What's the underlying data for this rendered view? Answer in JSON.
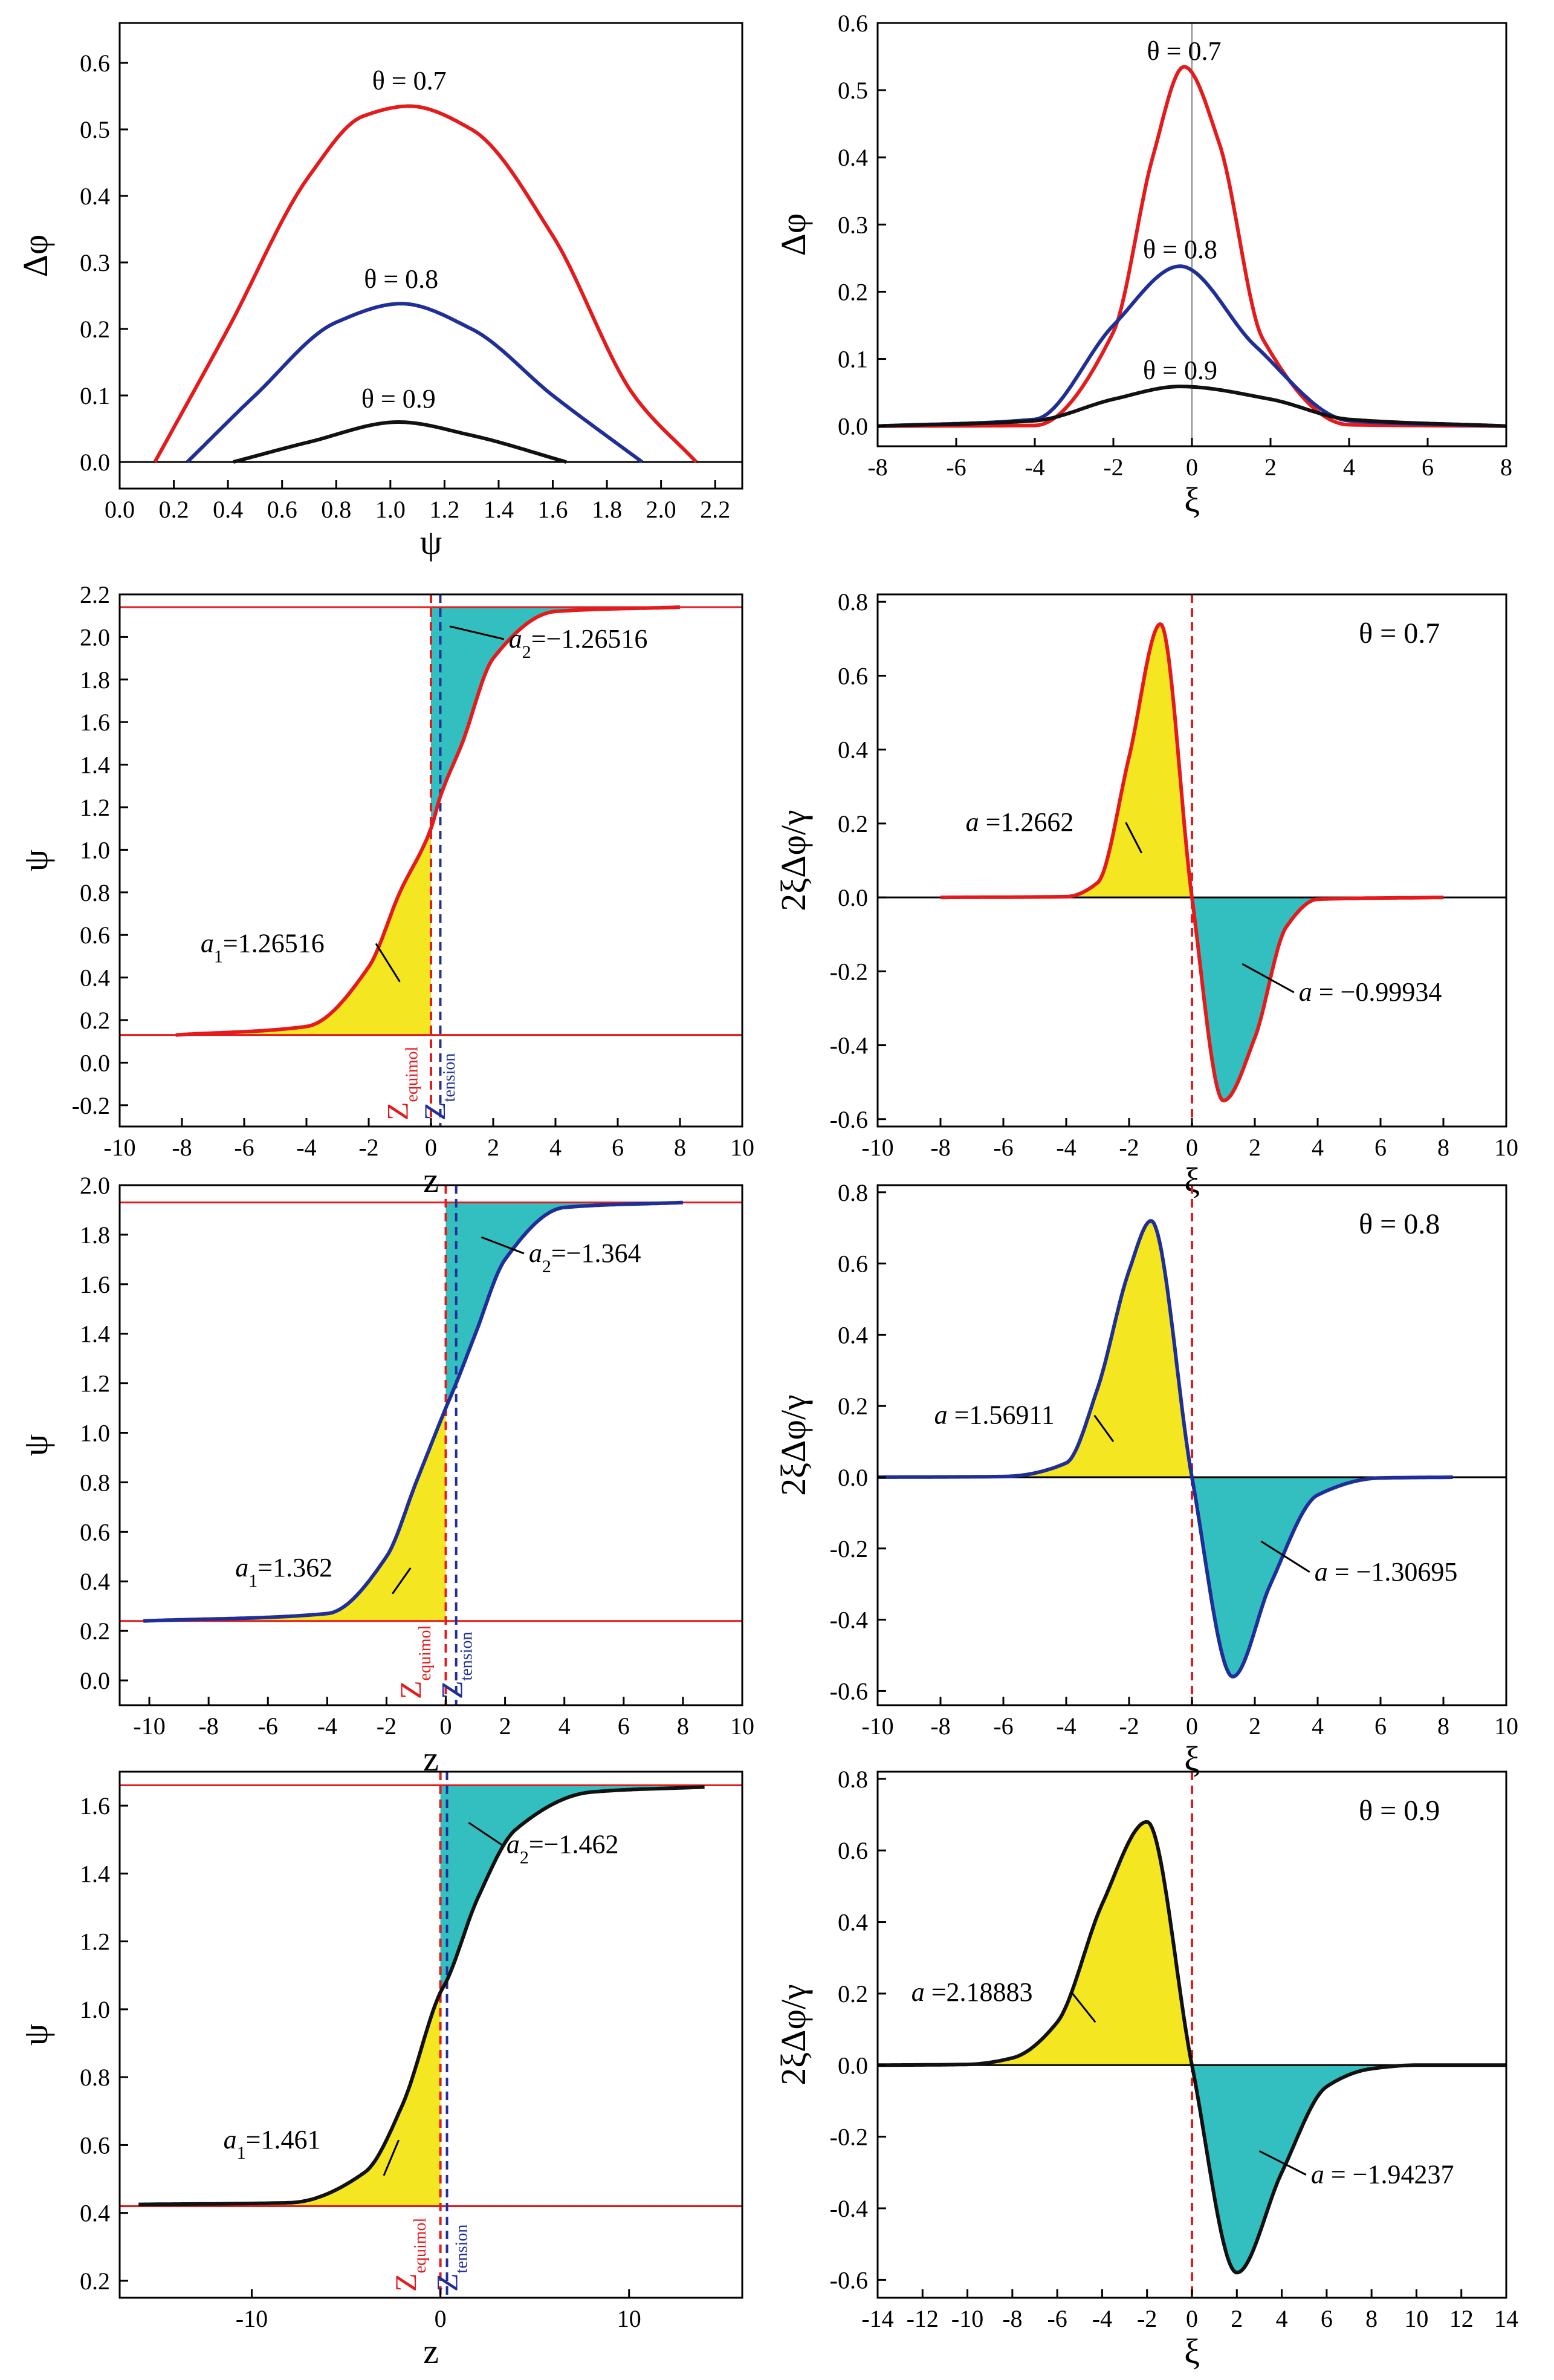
{
  "chart_data": [
    {
      "id": "p1",
      "type": "line",
      "xlabel": "ψ",
      "ylabel": "Δφ",
      "xlim": [
        0.0,
        2.3
      ],
      "ylim": [
        -0.04,
        0.66
      ],
      "xticks": [
        0.0,
        0.2,
        0.4,
        0.6,
        0.8,
        1.0,
        1.2,
        1.4,
        1.6,
        1.8,
        2.0,
        2.2
      ],
      "xtick_labels": [
        "0.0",
        "0.2",
        "0.4",
        "0.6",
        "0.8",
        "1.0",
        "1.2",
        "1.4",
        "1.6",
        "1.8",
        "2.0",
        "2.2"
      ],
      "yticks": [
        0.0,
        0.1,
        0.2,
        0.3,
        0.4,
        0.5,
        0.6
      ],
      "ytick_labels": [
        "0.0",
        "0.1",
        "0.2",
        "0.3",
        "0.4",
        "0.5",
        "0.6"
      ],
      "hlines": [
        {
          "y": 0,
          "color": "#000000"
        }
      ],
      "series": [
        {
          "name": "θ = 0.7",
          "color": "#e41a1c",
          "x": [
            0.13,
            0.4,
            0.7,
            0.9,
            1.07,
            1.3,
            1.6,
            1.9,
            2.13
          ],
          "y": [
            0.0,
            0.2,
            0.43,
            0.52,
            0.535,
            0.5,
            0.34,
            0.1,
            0.0
          ],
          "label_at": [
            1.07,
            0.56
          ]
        },
        {
          "name": "θ = 0.8",
          "color": "#1f2f97",
          "x": [
            0.25,
            0.5,
            0.8,
            1.04,
            1.3,
            1.6,
            1.93
          ],
          "y": [
            0.0,
            0.1,
            0.21,
            0.238,
            0.2,
            0.1,
            0.0
          ],
          "label_at": [
            1.04,
            0.262
          ]
        },
        {
          "name": "θ = 0.9",
          "color": "#111111",
          "x": [
            0.42,
            0.7,
            1.03,
            1.3,
            1.65
          ],
          "y": [
            0.0,
            0.03,
            0.06,
            0.04,
            0.0
          ],
          "label_at": [
            1.03,
            0.082
          ]
        }
      ]
    },
    {
      "id": "p2",
      "type": "line",
      "xlabel": "ξ",
      "ylabel": "Δφ",
      "xlim": [
        -8,
        8
      ],
      "ylim": [
        -0.03,
        0.6
      ],
      "xticks": [
        -8,
        -6,
        -4,
        -2,
        0,
        2,
        4,
        6,
        8
      ],
      "xtick_labels": [
        "-8",
        "-6",
        "-4",
        "-2",
        "0",
        "2",
        "4",
        "6",
        "8"
      ],
      "yticks": [
        0.0,
        0.1,
        0.2,
        0.3,
        0.4,
        0.5,
        0.6
      ],
      "ytick_labels": [
        "0.0",
        "0.1",
        "0.2",
        "0.3",
        "0.4",
        "0.5",
        "0.6"
      ],
      "vlines": [
        {
          "x": 0,
          "color": "#888888",
          "dashed": false
        }
      ],
      "series": [
        {
          "name": "θ = 0.7",
          "color": "#e41a1c",
          "x": [
            -8,
            -4,
            -2,
            -1,
            -0.2,
            0.7,
            1.8,
            4,
            8
          ],
          "y": [
            0,
            0.001,
            0.14,
            0.4,
            0.535,
            0.42,
            0.13,
            0.002,
            0
          ],
          "label_at": [
            -0.2,
            0.545
          ]
        },
        {
          "name": "θ = 0.8",
          "color": "#1f2f97",
          "x": [
            -8,
            -4,
            -2,
            -0.3,
            1.6,
            4,
            8
          ],
          "y": [
            0,
            0.01,
            0.15,
            0.238,
            0.12,
            0.008,
            0
          ],
          "label_at": [
            -0.3,
            0.25
          ]
        },
        {
          "name": "θ = 0.9",
          "color": "#111111",
          "x": [
            -8,
            -4,
            -2,
            -0.3,
            2,
            4,
            8
          ],
          "y": [
            0,
            0.008,
            0.04,
            0.059,
            0.04,
            0.01,
            0
          ],
          "label_at": [
            -0.3,
            0.07
          ]
        }
      ]
    },
    {
      "id": "p3",
      "type": "area",
      "xlabel": "z",
      "ylabel": "ψ",
      "xlim": [
        -10,
        10
      ],
      "ylim": [
        -0.3,
        2.2
      ],
      "xticks": [
        -10,
        -8,
        -6,
        -4,
        -2,
        0,
        2,
        4,
        6,
        8,
        10
      ],
      "xtick_labels": [
        "-10",
        "-8",
        "-6",
        "-4",
        "-2",
        "0",
        "2",
        "4",
        "6",
        "8",
        "10"
      ],
      "yticks": [
        -0.2,
        0.0,
        0.2,
        0.4,
        0.6,
        0.8,
        1.0,
        1.2,
        1.4,
        1.6,
        1.8,
        2.0,
        2.2
      ],
      "ytick_labels": [
        "-0.2",
        "0.0",
        "0.2",
        "0.4",
        "0.6",
        "0.8",
        "1.0",
        "1.2",
        "1.4",
        "1.6",
        "1.8",
        "2.0",
        "2.2"
      ],
      "hlines": [
        {
          "y": 0.13,
          "color": "#e41a1c"
        },
        {
          "y": 2.14,
          "color": "#e41a1c"
        }
      ],
      "vlines": [
        {
          "x": 0.0,
          "color": "#e41a1c",
          "dashed": true
        },
        {
          "x": 0.3,
          "color": "#1f2f97",
          "dashed": true
        }
      ],
      "curve": {
        "color": "#e41a1c",
        "x": [
          -8.2,
          -4,
          -2,
          -1,
          0,
          0.3,
          1,
          2,
          4,
          8
        ],
        "y": [
          0.13,
          0.17,
          0.45,
          0.8,
          1.1,
          1.25,
          1.5,
          1.9,
          2.12,
          2.14
        ]
      },
      "fills": [
        {
          "color": "#f5e622",
          "from_x": -8.2,
          "to_x": 0.0,
          "baseline": 0.13
        },
        {
          "color": "#33bfbf",
          "from_x": 0.0,
          "to_x": 8,
          "baseline": 2.14
        }
      ],
      "annotations": [
        {
          "prefix": "a",
          "sub": "2",
          "value": "=−1.26516",
          "text_at": [
            2.5,
            1.95
          ],
          "arrow_to": [
            0.6,
            2.05
          ]
        },
        {
          "prefix": "a",
          "sub": "1",
          "value": "=1.26516",
          "text_at": [
            -7.4,
            0.52
          ],
          "arrow_to": [
            -1.0,
            0.38
          ]
        }
      ],
      "z_markers": [
        {
          "letter": "Z",
          "sub": "equimol",
          "color": "#e41a1c",
          "x": -0.75
        },
        {
          "letter": "Z",
          "sub": "tension",
          "color": "#1f2f97",
          "x": 0.45
        }
      ]
    },
    {
      "id": "p4",
      "type": "area",
      "xlabel": "ξ",
      "ylabel": "2ξΔφ/γ",
      "title": "θ = 0.7",
      "xlim": [
        -10,
        10
      ],
      "ylim": [
        -0.62,
        0.82
      ],
      "xticks": [
        -10,
        -8,
        -6,
        -4,
        -2,
        0,
        2,
        4,
        6,
        8,
        10
      ],
      "xtick_labels": [
        "-10",
        "-8",
        "-6",
        "-4",
        "-2",
        "0",
        "2",
        "4",
        "6",
        "8",
        "10"
      ],
      "yticks": [
        -0.6,
        -0.4,
        -0.2,
        0.0,
        0.2,
        0.4,
        0.6,
        0.8
      ],
      "ytick_labels": [
        "-0.6",
        "-0.4",
        "-0.2",
        "0.0",
        "0.2",
        "0.4",
        "0.6",
        "0.8"
      ],
      "hlines": [
        {
          "y": 0,
          "color": "#000000"
        }
      ],
      "vlines": [
        {
          "x": 0,
          "color": "#e41a1c",
          "dashed": true
        }
      ],
      "curve": {
        "color": "#e41a1c",
        "x": [
          -8,
          -4,
          -3,
          -2,
          -1,
          0,
          1,
          2,
          3,
          4,
          8
        ],
        "y": [
          0,
          0.002,
          0.04,
          0.38,
          0.74,
          0.0,
          -0.55,
          -0.38,
          -0.08,
          -0.005,
          0
        ]
      },
      "fills": [
        {
          "color": "#f5e622",
          "from_x": -8,
          "to_x": 0,
          "baseline": 0
        },
        {
          "color": "#33bfbf",
          "from_x": 0,
          "to_x": 8,
          "baseline": 0
        }
      ],
      "annotations": [
        {
          "prefix": "a",
          "sub": "",
          "value": " =1.2662",
          "text_at": [
            -7.2,
            0.18
          ],
          "arrow_to": [
            -1.6,
            0.12
          ]
        },
        {
          "prefix": "a",
          "sub": "",
          "value": " = −0.99934",
          "text_at": [
            3.4,
            -0.28
          ],
          "arrow_to": [
            1.6,
            -0.18
          ]
        }
      ]
    },
    {
      "id": "p5",
      "type": "area",
      "xlabel": "z",
      "ylabel": "ψ",
      "xlim": [
        -11,
        10
      ],
      "ylim": [
        -0.1,
        2.0
      ],
      "xticks": [
        -10,
        -8,
        -6,
        -4,
        -2,
        0,
        2,
        4,
        6,
        8,
        10
      ],
      "xtick_labels": [
        "-10",
        "-8",
        "-6",
        "-4",
        "-2",
        "0",
        "2",
        "4",
        "6",
        "8",
        "10"
      ],
      "yticks": [
        0.0,
        0.2,
        0.4,
        0.6,
        0.8,
        1.0,
        1.2,
        1.4,
        1.6,
        1.8,
        2.0
      ],
      "ytick_labels": [
        "0.0",
        "0.2",
        "0.4",
        "0.6",
        "0.8",
        "1.0",
        "1.2",
        "1.4",
        "1.6",
        "1.8",
        "2.0"
      ],
      "hlines": [
        {
          "y": 0.24,
          "color": "#e41a1c"
        },
        {
          "y": 1.93,
          "color": "#e41a1c"
        }
      ],
      "vlines": [
        {
          "x": 0.0,
          "color": "#e41a1c",
          "dashed": true
        },
        {
          "x": 0.35,
          "color": "#1f2f97",
          "dashed": true
        }
      ],
      "curve": {
        "color": "#1f2f97",
        "x": [
          -10.2,
          -4,
          -2,
          -1,
          0,
          0.35,
          1,
          2,
          4,
          8
        ],
        "y": [
          0.24,
          0.27,
          0.5,
          0.8,
          1.1,
          1.2,
          1.4,
          1.7,
          1.91,
          1.93
        ]
      },
      "fills": [
        {
          "color": "#f5e622",
          "from_x": -10.2,
          "to_x": 0.0,
          "baseline": 0.24
        },
        {
          "color": "#33bfbf",
          "from_x": 0.0,
          "to_x": 8,
          "baseline": 1.93
        }
      ],
      "annotations": [
        {
          "prefix": "a",
          "sub": "2",
          "value": "=−1.364",
          "text_at": [
            2.8,
            1.69
          ],
          "arrow_to": [
            1.2,
            1.79
          ]
        },
        {
          "prefix": "a",
          "sub": "1",
          "value": "=1.362",
          "text_at": [
            -7.1,
            0.42
          ],
          "arrow_to": [
            -1.8,
            0.35
          ]
        }
      ],
      "z_markers": [
        {
          "letter": "Z",
          "sub": "equimol",
          "color": "#e41a1c",
          "x": -0.85
        },
        {
          "letter": "Z",
          "sub": "tension",
          "color": "#1f2f97",
          "x": 0.55
        }
      ]
    },
    {
      "id": "p6",
      "type": "area",
      "xlabel": "ξ",
      "ylabel": "2ξΔφ/γ",
      "title": "θ = 0.8",
      "xlim": [
        -10,
        10
      ],
      "ylim": [
        -0.64,
        0.82
      ],
      "xticks": [
        -10,
        -8,
        -6,
        -4,
        -2,
        0,
        2,
        4,
        6,
        8,
        10
      ],
      "xtick_labels": [
        "-10",
        "-8",
        "-6",
        "-4",
        "-2",
        "0",
        "2",
        "4",
        "6",
        "8",
        "10"
      ],
      "yticks": [
        -0.6,
        -0.4,
        -0.2,
        0.0,
        0.2,
        0.4,
        0.6,
        0.8
      ],
      "ytick_labels": [
        "-0.6",
        "-0.4",
        "-0.2",
        "0.0",
        "0.2",
        "0.4",
        "0.6",
        "0.8"
      ],
      "hlines": [
        {
          "y": 0,
          "color": "#000000"
        }
      ],
      "vlines": [
        {
          "x": 0,
          "color": "#e41a1c",
          "dashed": true
        }
      ],
      "curve": {
        "color": "#1f2f97",
        "x": [
          -10,
          -6,
          -4,
          -3,
          -2,
          -1.3,
          0,
          1.3,
          2.5,
          4,
          6,
          8.3
        ],
        "y": [
          0,
          0.002,
          0.04,
          0.25,
          0.58,
          0.72,
          0.0,
          -0.56,
          -0.3,
          -0.05,
          -0.002,
          0
        ]
      },
      "fills": [
        {
          "color": "#f5e622",
          "from_x": -10,
          "to_x": 0,
          "baseline": 0
        },
        {
          "color": "#33bfbf",
          "from_x": 0,
          "to_x": 8.3,
          "baseline": 0
        }
      ],
      "annotations": [
        {
          "prefix": "a",
          "sub": "",
          "value": " =1.56911",
          "text_at": [
            -8.2,
            0.15
          ],
          "arrow_to": [
            -2.5,
            0.1
          ]
        },
        {
          "prefix": "a",
          "sub": "",
          "value": " = −1.30695",
          "text_at": [
            3.9,
            -0.29
          ],
          "arrow_to": [
            2.2,
            -0.18
          ]
        }
      ]
    },
    {
      "id": "p7",
      "type": "area",
      "xlabel": "z",
      "ylabel": "ψ",
      "xlim": [
        -17,
        16
      ],
      "ylim": [
        0.15,
        1.7
      ],
      "xticks": [
        -10,
        0,
        10
      ],
      "xtick_labels": [
        "-10",
        "0",
        "10"
      ],
      "yticks": [
        0.2,
        0.4,
        0.6,
        0.8,
        1.0,
        1.2,
        1.4,
        1.6
      ],
      "ytick_labels": [
        "0.2",
        "0.4",
        "0.6",
        "0.8",
        "1.0",
        "1.2",
        "1.4",
        "1.6"
      ],
      "hlines": [
        {
          "y": 0.42,
          "color": "#e41a1c"
        },
        {
          "y": 1.66,
          "color": "#e41a1c"
        }
      ],
      "vlines": [
        {
          "x": 0.0,
          "color": "#e41a1c",
          "dashed": true
        },
        {
          "x": 0.35,
          "color": "#1f2f97",
          "dashed": true
        }
      ],
      "curve": {
        "color": "#111111",
        "x": [
          -16,
          -8,
          -4,
          -2,
          0,
          0.3,
          2,
          4,
          8,
          14
        ],
        "y": [
          0.425,
          0.43,
          0.52,
          0.72,
          1.05,
          1.08,
          1.33,
          1.53,
          1.64,
          1.655
        ]
      },
      "fills": [
        {
          "color": "#f5e622",
          "from_x": -16,
          "to_x": 0.0,
          "baseline": 0.42
        },
        {
          "color": "#33bfbf",
          "from_x": 0.0,
          "to_x": 14,
          "baseline": 1.66
        }
      ],
      "annotations": [
        {
          "prefix": "a",
          "sub": "2",
          "value": "=−1.462",
          "text_at": [
            3.5,
            1.46
          ],
          "arrow_to": [
            1.5,
            1.55
          ]
        },
        {
          "prefix": "a",
          "sub": "1",
          "value": "=1.461",
          "text_at": [
            -11.5,
            0.59
          ],
          "arrow_to": [
            -3.0,
            0.51
          ]
        }
      ],
      "z_markers": [
        {
          "letter": "Z",
          "sub": "equimol",
          "color": "#e41a1c",
          "x": -1.3
        },
        {
          "letter": "Z",
          "sub": "tension",
          "color": "#1f2f97",
          "x": 0.9
        }
      ]
    },
    {
      "id": "p8",
      "type": "area",
      "xlabel": "ξ",
      "ylabel": "2ξΔφ/γ",
      "title": "θ = 0.9",
      "xlim": [
        -14,
        14
      ],
      "ylim": [
        -0.65,
        0.82
      ],
      "xticks": [
        -14,
        -12,
        -10,
        -8,
        -6,
        -4,
        -2,
        0,
        2,
        4,
        6,
        8,
        10,
        12,
        14
      ],
      "xtick_labels": [
        "-14",
        "-12",
        "-10",
        "-8",
        "-6",
        "-4",
        "-2",
        "0",
        "2",
        "4",
        "6",
        "8",
        "10",
        "12",
        "14"
      ],
      "yticks": [
        -0.6,
        -0.4,
        -0.2,
        0.0,
        0.2,
        0.4,
        0.6,
        0.8
      ],
      "ytick_labels": [
        "-0.6",
        "-0.4",
        "-0.2",
        "0.0",
        "0.2",
        "0.4",
        "0.6",
        "0.8"
      ],
      "hlines": [
        {
          "y": 0,
          "color": "#000000"
        }
      ],
      "vlines": [
        {
          "x": 0,
          "color": "#e41a1c",
          "dashed": true
        }
      ],
      "curve": {
        "color": "#111111",
        "x": [
          -14,
          -10,
          -8,
          -6,
          -4,
          -2,
          0,
          2,
          4,
          6,
          8,
          10,
          14
        ],
        "y": [
          0,
          0.002,
          0.02,
          0.12,
          0.45,
          0.68,
          0.0,
          -0.58,
          -0.3,
          -0.06,
          -0.01,
          0,
          0
        ]
      },
      "fills": [
        {
          "color": "#f5e622",
          "from_x": -14,
          "to_x": 0,
          "baseline": 0
        },
        {
          "color": "#33bfbf",
          "from_x": 0,
          "to_x": 14,
          "baseline": 0
        }
      ],
      "annotations": [
        {
          "prefix": "a",
          "sub": "",
          "value": " =2.18883",
          "text_at": [
            -12.5,
            0.18
          ],
          "arrow_to": [
            -4.3,
            0.12
          ]
        },
        {
          "prefix": "a",
          "sub": "",
          "value": " = −1.94237",
          "text_at": [
            5.3,
            -0.33
          ],
          "arrow_to": [
            3.0,
            -0.24
          ]
        }
      ]
    }
  ]
}
